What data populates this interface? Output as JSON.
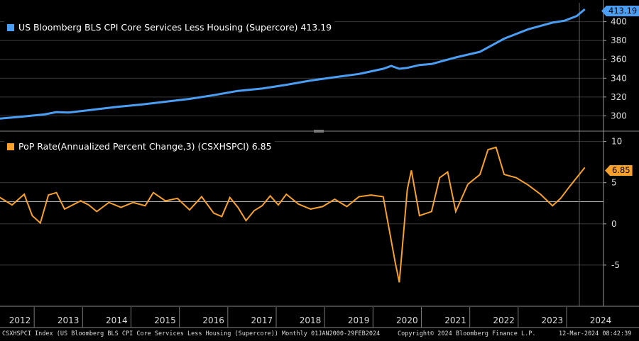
{
  "legend_top": {
    "label": "US Bloomberg BLS CPI Core Services Less Housing (Supercore) 413.19",
    "color": "#4a9ff5"
  },
  "legend_bottom": {
    "label": "PoP Rate(Annualized Percent Change,3) (CSXHSPCI) 6.85",
    "color": "#f7a12c"
  },
  "tags": {
    "top": "413.19",
    "bottom": "6.85"
  },
  "footer": {
    "left": "CSXHSPCI Index (US Bloomberg BLS CPI Core Services Less Housing (Supercore)) Monthly 01JAN2000-29FEB2024",
    "center": "Copyright© 2024 Bloomberg Finance L.P.",
    "right": "12-Mar-2024 08:42:39"
  },
  "chart_data": [
    {
      "type": "line",
      "series": [
        {
          "name": "US Bloomberg BLS CPI Core Services Less Housing (Supercore)",
          "color": "#4a9ff5"
        }
      ],
      "ylim": [
        286,
        420
      ],
      "yticks": [
        300,
        320,
        340,
        360,
        380,
        400
      ],
      "x_start": "2011-10",
      "x_end": "2024-02",
      "points": [
        [
          "2011-10",
          296
        ],
        [
          "2012-06",
          299
        ],
        [
          "2012-12",
          301.5
        ],
        [
          "2013-03",
          304
        ],
        [
          "2013-06",
          303.5
        ],
        [
          "2013-12",
          306.5
        ],
        [
          "2014-06",
          309.5
        ],
        [
          "2014-12",
          312
        ],
        [
          "2015-06",
          315
        ],
        [
          "2015-12",
          318
        ],
        [
          "2016-06",
          322
        ],
        [
          "2016-12",
          326.5
        ],
        [
          "2017-06",
          329
        ],
        [
          "2017-12",
          333
        ],
        [
          "2018-06",
          337.5
        ],
        [
          "2018-12",
          341
        ],
        [
          "2019-06",
          344.5
        ],
        [
          "2019-12",
          350
        ],
        [
          "2020-02",
          353
        ],
        [
          "2020-04",
          350
        ],
        [
          "2020-06",
          351
        ],
        [
          "2020-09",
          354
        ],
        [
          "2020-12",
          355
        ],
        [
          "2021-06",
          362
        ],
        [
          "2021-12",
          368
        ],
        [
          "2022-06",
          382
        ],
        [
          "2022-12",
          392
        ],
        [
          "2023-06",
          399
        ],
        [
          "2023-09",
          401
        ],
        [
          "2023-12",
          406
        ],
        [
          "2024-02",
          413.19
        ]
      ]
    },
    {
      "type": "line",
      "series": [
        {
          "name": "PoP Rate(Annualized Percent Change,3) (CSXHSPCI)",
          "color": "#f7a12c"
        }
      ],
      "ylim": [
        -10,
        11
      ],
      "yticks": [
        -5,
        0,
        5,
        10
      ],
      "x_start": "2011-10",
      "x_end": "2024-02",
      "points": [
        [
          "2011-10",
          2.7
        ],
        [
          "2012-01",
          3.2
        ],
        [
          "2012-04",
          2.3
        ],
        [
          "2012-07",
          3.6
        ],
        [
          "2012-09",
          1.0
        ],
        [
          "2012-11",
          0.1
        ],
        [
          "2013-01",
          3.5
        ],
        [
          "2013-03",
          3.8
        ],
        [
          "2013-05",
          1.8
        ],
        [
          "2013-07",
          2.3
        ],
        [
          "2013-09",
          2.8
        ],
        [
          "2013-11",
          2.3
        ],
        [
          "2014-01",
          1.5
        ],
        [
          "2014-04",
          2.6
        ],
        [
          "2014-07",
          2.0
        ],
        [
          "2014-10",
          2.6
        ],
        [
          "2015-01",
          2.2
        ],
        [
          "2015-03",
          3.8
        ],
        [
          "2015-06",
          2.8
        ],
        [
          "2015-09",
          3.1
        ],
        [
          "2015-12",
          1.7
        ],
        [
          "2016-03",
          3.3
        ],
        [
          "2016-06",
          1.3
        ],
        [
          "2016-08",
          0.9
        ],
        [
          "2016-10",
          3.2
        ],
        [
          "2016-12",
          2.0
        ],
        [
          "2017-02",
          0.4
        ],
        [
          "2017-04",
          1.6
        ],
        [
          "2017-06",
          2.2
        ],
        [
          "2017-08",
          3.4
        ],
        [
          "2017-10",
          2.3
        ],
        [
          "2017-12",
          3.6
        ],
        [
          "2018-03",
          2.4
        ],
        [
          "2018-06",
          1.8
        ],
        [
          "2018-09",
          2.1
        ],
        [
          "2018-12",
          3.0
        ],
        [
          "2019-03",
          2.1
        ],
        [
          "2019-06",
          3.3
        ],
        [
          "2019-09",
          3.5
        ],
        [
          "2019-12",
          3.3
        ],
        [
          "2020-03",
          -4.7
        ],
        [
          "2020-04",
          -7.1
        ],
        [
          "2020-06",
          4.2
        ],
        [
          "2020-07",
          6.5
        ],
        [
          "2020-09",
          1.0
        ],
        [
          "2020-12",
          1.5
        ],
        [
          "2021-02",
          5.6
        ],
        [
          "2021-04",
          6.3
        ],
        [
          "2021-06",
          1.5
        ],
        [
          "2021-09",
          4.8
        ],
        [
          "2021-12",
          6.0
        ],
        [
          "2022-02",
          9.0
        ],
        [
          "2022-04",
          9.3
        ],
        [
          "2022-06",
          6.0
        ],
        [
          "2022-09",
          5.6
        ],
        [
          "2022-12",
          4.7
        ],
        [
          "2023-03",
          3.6
        ],
        [
          "2023-06",
          2.2
        ],
        [
          "2023-08",
          3.1
        ],
        [
          "2023-10",
          4.4
        ],
        [
          "2024-02",
          6.85
        ]
      ]
    }
  ],
  "x_axis": {
    "years": [
      "2012",
      "2013",
      "2014",
      "2015",
      "2016",
      "2017",
      "2018",
      "2019",
      "2020",
      "2021",
      "2022",
      "2023",
      "2024"
    ]
  }
}
